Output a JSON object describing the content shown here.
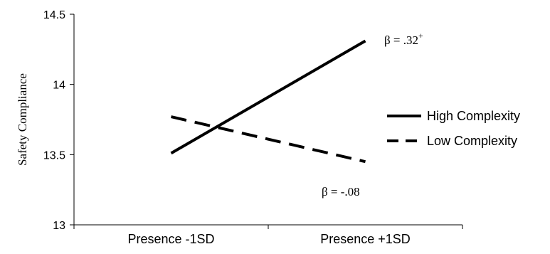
{
  "chart_data": {
    "type": "line",
    "title": "",
    "xlabel": "",
    "ylabel": "Safety Compliance",
    "categories": [
      "Presence -1SD",
      "Presence +1SD"
    ],
    "ylim": [
      13,
      14.5
    ],
    "yticks": [
      "13",
      "13.5",
      "14",
      "14.5"
    ],
    "grid": false,
    "legend_position": "right",
    "series": [
      {
        "name": "High Complexity",
        "values": [
          13.51,
          14.31
        ],
        "style": "solid",
        "color": "#000000"
      },
      {
        "name": "Low Complexity",
        "values": [
          13.77,
          13.45
        ],
        "style": "dashed",
        "color": "#000000"
      }
    ],
    "annotations": [
      {
        "series": "High Complexity",
        "text": "β = .32",
        "superscript": "+"
      },
      {
        "series": "Low Complexity",
        "text": "β = -.08",
        "superscript": ""
      }
    ]
  }
}
